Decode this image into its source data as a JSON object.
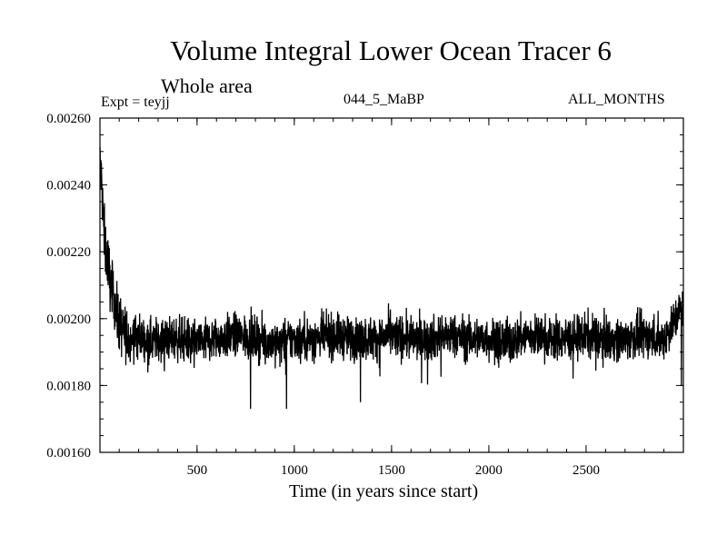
{
  "chart_data": {
    "type": "line",
    "title": "Volume Integral Lower Ocean Tracer 6",
    "subtitle": "Whole area",
    "expt_label": "Expt = teyjj",
    "period_label": "044_5_MaBP",
    "months_label": "ALL_MONTHS",
    "xlabel": "Time (in years since start)",
    "ylabel": "",
    "xlim": [
      1,
      3000
    ],
    "ylim": [
      0.0016,
      0.0026
    ],
    "xticks": [
      500,
      1000,
      1500,
      2000,
      2500
    ],
    "xtick_labels": [
      "500",
      "1000",
      "1500",
      "2000",
      "2500"
    ],
    "yticks": [
      0.0016,
      0.0018,
      0.002,
      0.0022,
      0.0024,
      0.0026
    ],
    "ytick_labels": [
      "0.00160",
      "0.00180",
      "0.00200",
      "0.00220",
      "0.00240",
      "0.00260"
    ],
    "series": [
      {
        "name": "Tracer 6",
        "description": "Initial spike near 0.00247 decaying to ~0.00195 by year ~150, then noisy equilibrium with mean ~0.00194 (range ~0.00173-0.00204)",
        "x": [
          1,
          5,
          10,
          15,
          20,
          30,
          40,
          50,
          60,
          70,
          80,
          90,
          100,
          120,
          150,
          200,
          250,
          300,
          400,
          500,
          600,
          700,
          775,
          800,
          900,
          960,
          1000,
          1100,
          1200,
          1300,
          1340,
          1400,
          1500,
          1600,
          1700,
          1800,
          1900,
          2000,
          2100,
          2200,
          2300,
          2400,
          2500,
          2600,
          2700,
          2800,
          2900,
          2990,
          3000
        ],
        "y": [
          0.00247,
          0.00244,
          0.0024,
          0.00234,
          0.00228,
          0.0022,
          0.00218,
          0.00213,
          0.00208,
          0.00207,
          0.00205,
          0.002,
          0.00199,
          0.00196,
          0.00194,
          0.00195,
          0.00193,
          0.00194,
          0.00194,
          0.00193,
          0.00194,
          0.00195,
          0.00173,
          0.00194,
          0.00193,
          0.00173,
          0.00194,
          0.00194,
          0.00195,
          0.00194,
          0.00175,
          0.00194,
          0.00195,
          0.00194,
          0.00194,
          0.00195,
          0.00194,
          0.00194,
          0.00193,
          0.00195,
          0.00194,
          0.00194,
          0.00195,
          0.00194,
          0.00194,
          0.00195,
          0.00194,
          0.0018,
          0.00204
        ]
      }
    ]
  }
}
